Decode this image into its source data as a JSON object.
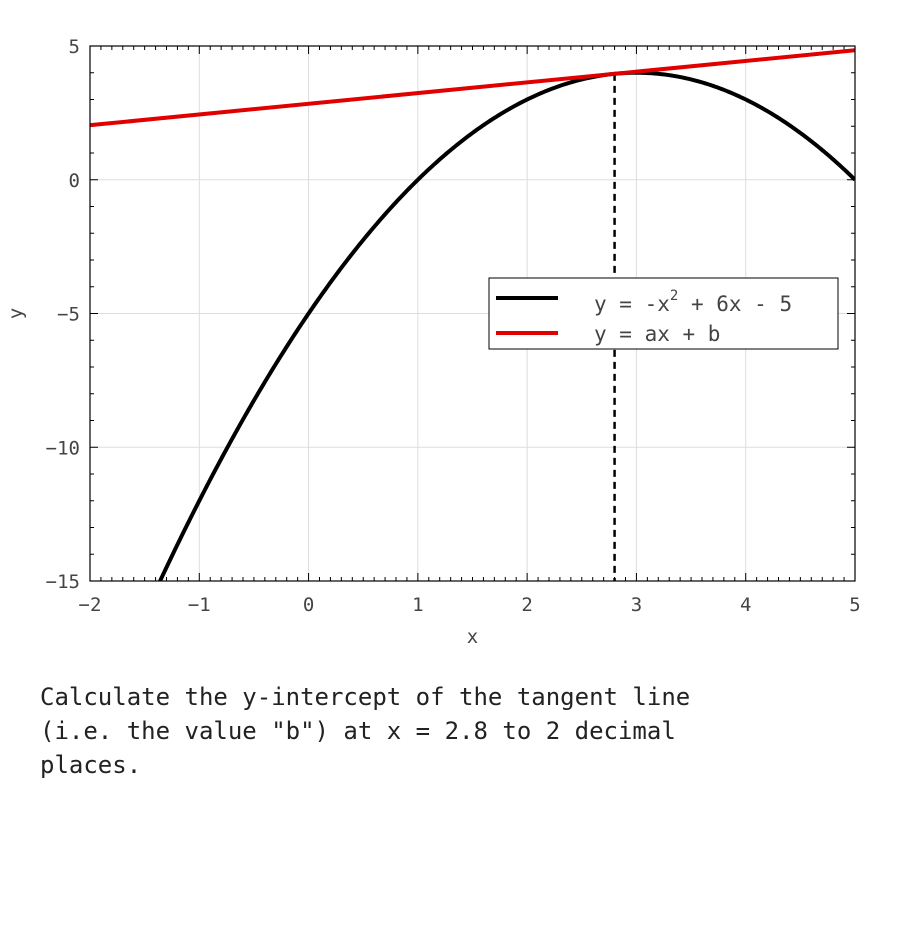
{
  "chart_data": {
    "type": "line",
    "title": "",
    "xlabel": "x",
    "ylabel": "y",
    "xlim": [
      -2,
      5
    ],
    "ylim": [
      -15,
      5
    ],
    "x_ticks": [
      -2,
      -1,
      0,
      1,
      2,
      3,
      4,
      5
    ],
    "y_ticks": [
      -15,
      -10,
      -5,
      0,
      5
    ],
    "x_tick_labels": [
      "−2",
      "−1",
      "0",
      "1",
      "2",
      "3",
      "4",
      "5"
    ],
    "y_tick_labels": [
      "−15",
      "−10",
      "−5",
      "0",
      "5"
    ],
    "grid": true,
    "legend_position": "right",
    "series": [
      {
        "name_main": "y = -x",
        "name_sup": "2",
        "name_tail": " + 6x - 5",
        "color": "#000000",
        "coefficients": {
          "a2": -1,
          "a1": 6,
          "a0": -5
        }
      },
      {
        "name_main": "y = ax + b",
        "color": "#e00000",
        "x": [
          -2,
          5
        ],
        "y": [
          2.04,
          4.84
        ]
      }
    ],
    "tangent_point_x": 2.8,
    "annotations": [
      {
        "type": "vertical-dashed-line",
        "x": 2.8
      }
    ]
  },
  "question": "Calculate the y-intercept of the tangent line\n(i.e. the value \"b\") at x = 2.8 to 2 decimal\nplaces."
}
